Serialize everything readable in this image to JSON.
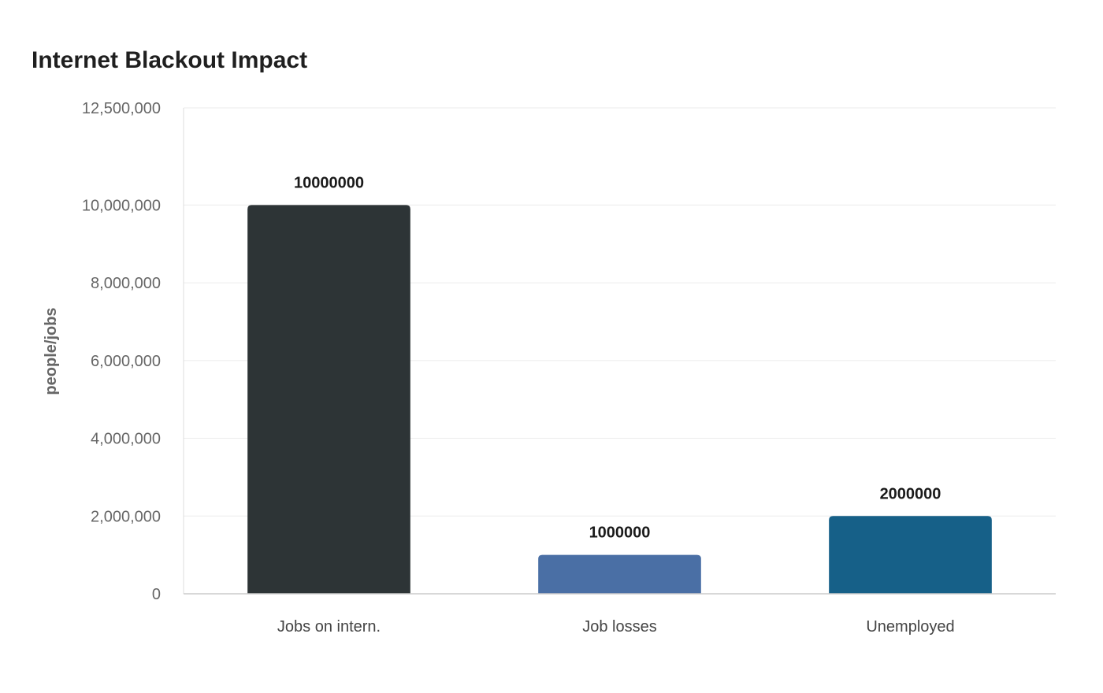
{
  "chart_data": {
    "type": "bar",
    "title": "Internet Blackout Impact",
    "xlabel": "",
    "ylabel": "people/jobs",
    "categories": [
      "Jobs on intern.",
      "Job losses",
      "Unemployed"
    ],
    "values": [
      10000000,
      1000000,
      2000000
    ],
    "data_labels": [
      "10000000",
      "1000000",
      "2000000"
    ],
    "colors": [
      "#2d3436",
      "#4a6fa5",
      "#166088"
    ],
    "ylim": [
      0,
      12500000
    ],
    "yticks": [
      0,
      2000000,
      4000000,
      6000000,
      8000000,
      10000000,
      12500000
    ],
    "ytick_labels": [
      "0",
      "2,000,000",
      "4,000,000",
      "6,000,000",
      "8,000,000",
      "10,000,000",
      "12,500,000"
    ],
    "grid": true,
    "legend": "none"
  }
}
